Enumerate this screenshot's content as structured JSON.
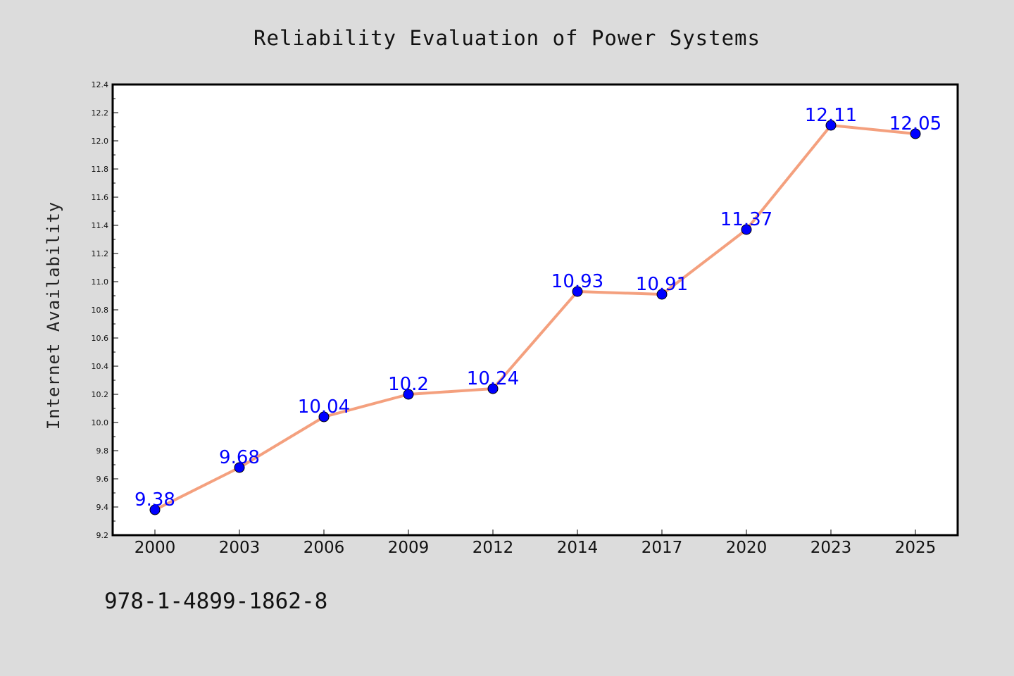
{
  "chart_data": {
    "type": "line",
    "title": "Reliability Evaluation of Power Systems",
    "xlabel": "",
    "ylabel": "Internet Availability",
    "categories": [
      "2000",
      "2003",
      "2006",
      "2009",
      "2012",
      "2014",
      "2017",
      "2020",
      "2023",
      "2025"
    ],
    "series": [
      {
        "values": [
          9.38,
          9.68,
          10.04,
          10.2,
          10.24,
          10.93,
          10.91,
          11.37,
          12.11,
          12.05
        ],
        "data_labels": [
          "9.38",
          "9.68",
          "10.04",
          "10.2",
          "10.24",
          "10.93",
          "10.91",
          "11.37",
          "12.11",
          "12.05"
        ],
        "line_color": "#f4a07e",
        "marker_color": "#0000ff"
      }
    ],
    "ylim": [
      9.2,
      12.4
    ],
    "yticks": [
      "9.2",
      "9.4",
      "9.6",
      "9.8",
      "10.0",
      "10.2",
      "10.4",
      "10.6",
      "10.8",
      "11.0",
      "11.2",
      "11.4",
      "11.6",
      "11.8",
      "12.0",
      "12.2",
      "12.4"
    ],
    "grid": false,
    "background": "#dcdcdc",
    "plot_background": "#ffffff"
  },
  "footnote": "978-1-4899-1862-8"
}
